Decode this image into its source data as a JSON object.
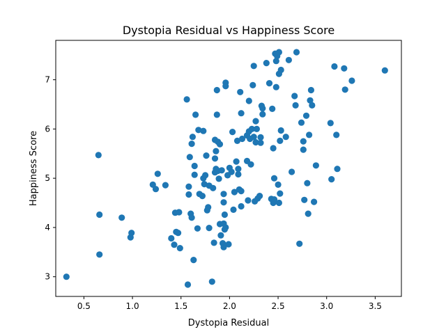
{
  "chart_data": {
    "type": "scatter",
    "title": "Dystopia Residual vs Happiness Score",
    "xlabel": "Dystopia Residual",
    "ylabel": "Happiness Score",
    "xlim": [
      0.21,
      3.77
    ],
    "ylim": [
      2.6,
      7.8
    ],
    "xticks": [
      0.5,
      1.0,
      1.5,
      2.0,
      2.5,
      3.0,
      3.5
    ],
    "xtick_labels": [
      "0.5",
      "1.0",
      "1.5",
      "2.0",
      "2.5",
      "3.0",
      "3.5"
    ],
    "yticks": [
      3,
      4,
      5,
      6,
      7
    ],
    "ytick_labels": [
      "3",
      "4",
      "5",
      "6",
      "7"
    ],
    "marker_color": "#1f77b4",
    "grid": false,
    "points": [
      [
        0.32,
        3.0
      ],
      [
        0.65,
        5.47
      ],
      [
        0.66,
        4.26
      ],
      [
        0.66,
        3.45
      ],
      [
        0.89,
        4.2
      ],
      [
        0.98,
        3.8
      ],
      [
        0.99,
        3.89
      ],
      [
        1.21,
        4.87
      ],
      [
        1.24,
        4.78
      ],
      [
        1.26,
        5.09
      ],
      [
        1.34,
        4.86
      ],
      [
        1.4,
        3.78
      ],
      [
        1.43,
        3.65
      ],
      [
        1.44,
        4.3
      ],
      [
        1.45,
        3.91
      ],
      [
        1.47,
        3.89
      ],
      [
        1.48,
        4.31
      ],
      [
        1.49,
        3.58
      ],
      [
        1.56,
        6.6
      ],
      [
        1.57,
        2.84
      ],
      [
        1.58,
        4.83
      ],
      [
        1.58,
        4.67
      ],
      [
        1.59,
        5.43
      ],
      [
        1.6,
        4.28
      ],
      [
        1.61,
        4.2
      ],
      [
        1.61,
        5.7
      ],
      [
        1.62,
        5.84
      ],
      [
        1.63,
        3.34
      ],
      [
        1.64,
        5.25
      ],
      [
        1.64,
        5.07
      ],
      [
        1.65,
        6.29
      ],
      [
        1.67,
        3.98
      ],
      [
        1.68,
        5.98
      ],
      [
        1.69,
        4.68
      ],
      [
        1.72,
        4.64
      ],
      [
        1.73,
        5.96
      ],
      [
        1.73,
        5.0
      ],
      [
        1.74,
        4.88
      ],
      [
        1.75,
        5.06
      ],
      [
        1.76,
        5.46
      ],
      [
        1.77,
        4.35
      ],
      [
        1.78,
        4.41
      ],
      [
        1.79,
        3.99
      ],
      [
        1.79,
        4.85
      ],
      [
        1.82,
        2.9
      ],
      [
        1.83,
        4.8
      ],
      [
        1.84,
        3.69
      ],
      [
        1.85,
        5.12
      ],
      [
        1.85,
        5.78
      ],
      [
        1.85,
        5.4
      ],
      [
        1.86,
        5.55
      ],
      [
        1.86,
        5.19
      ],
      [
        1.87,
        6.79
      ],
      [
        1.87,
        6.29
      ],
      [
        1.88,
        5.15
      ],
      [
        1.88,
        5.74
      ],
      [
        1.89,
        4.99
      ],
      [
        1.9,
        5.69
      ],
      [
        1.9,
        4.07
      ],
      [
        1.91,
        3.84
      ],
      [
        1.92,
        5.16
      ],
      [
        1.93,
        3.68
      ],
      [
        1.94,
        4.08
      ],
      [
        1.94,
        3.6
      ],
      [
        1.94,
        4.68
      ],
      [
        1.94,
        4.51
      ],
      [
        1.95,
        4.26
      ],
      [
        1.95,
        3.96
      ],
      [
        1.96,
        4.0
      ],
      [
        1.96,
        6.94
      ],
      [
        1.96,
        6.87
      ],
      [
        1.98,
        5.06
      ],
      [
        1.99,
        3.66
      ],
      [
        2.0,
        5.21
      ],
      [
        2.02,
        5.13
      ],
      [
        2.03,
        5.94
      ],
      [
        2.04,
        4.36
      ],
      [
        2.05,
        4.72
      ],
      [
        2.07,
        5.34
      ],
      [
        2.08,
        5.76
      ],
      [
        2.09,
        5.19
      ],
      [
        2.09,
        5.08
      ],
      [
        2.1,
        4.77
      ],
      [
        2.11,
        6.75
      ],
      [
        2.12,
        6.32
      ],
      [
        2.12,
        4.74
      ],
      [
        2.12,
        4.43
      ],
      [
        2.13,
        5.8
      ],
      [
        2.18,
        5.35
      ],
      [
        2.18,
        5.87
      ],
      [
        2.19,
        4.55
      ],
      [
        2.2,
        6.57
      ],
      [
        2.2,
        5.95
      ],
      [
        2.21,
        5.8
      ],
      [
        2.22,
        5.28
      ],
      [
        2.23,
        6.0
      ],
      [
        2.24,
        6.89
      ],
      [
        2.25,
        7.28
      ],
      [
        2.25,
        5.84
      ],
      [
        2.26,
        4.53
      ],
      [
        2.27,
        5.73
      ],
      [
        2.27,
        6.16
      ],
      [
        2.28,
        6.0
      ],
      [
        2.29,
        4.59
      ],
      [
        2.31,
        4.64
      ],
      [
        2.32,
        5.72
      ],
      [
        2.32,
        5.83
      ],
      [
        2.33,
        6.47
      ],
      [
        2.34,
        6.42
      ],
      [
        2.34,
        6.3
      ],
      [
        2.38,
        7.34
      ],
      [
        2.41,
        6.93
      ],
      [
        2.43,
        4.58
      ],
      [
        2.44,
        6.41
      ],
      [
        2.45,
        5.61
      ],
      [
        2.45,
        4.5
      ],
      [
        2.46,
        5.0
      ],
      [
        2.46,
        4.57
      ],
      [
        2.47,
        7.53
      ],
      [
        2.48,
        7.38
      ],
      [
        2.48,
        6.85
      ],
      [
        2.49,
        7.48
      ],
      [
        2.5,
        4.87
      ],
      [
        2.51,
        7.12
      ],
      [
        2.51,
        7.56
      ],
      [
        2.51,
        4.5
      ],
      [
        2.52,
        4.69
      ],
      [
        2.52,
        5.76
      ],
      [
        2.53,
        7.2
      ],
      [
        2.53,
        5.97
      ],
      [
        2.58,
        5.84
      ],
      [
        2.61,
        7.4
      ],
      [
        2.64,
        5.13
      ],
      [
        2.67,
        6.67
      ],
      [
        2.68,
        6.48
      ],
      [
        2.69,
        7.56
      ],
      [
        2.72,
        3.67
      ],
      [
        2.74,
        6.13
      ],
      [
        2.76,
        5.75
      ],
      [
        2.76,
        5.58
      ],
      [
        2.77,
        4.56
      ],
      [
        2.79,
        6.27
      ],
      [
        2.8,
        4.9
      ],
      [
        2.81,
        4.28
      ],
      [
        2.82,
        5.88
      ],
      [
        2.83,
        6.58
      ],
      [
        2.84,
        6.79
      ],
      [
        2.85,
        6.48
      ],
      [
        2.87,
        4.52
      ],
      [
        2.89,
        5.26
      ],
      [
        3.04,
        6.12
      ],
      [
        3.05,
        4.98
      ],
      [
        3.08,
        7.27
      ],
      [
        3.1,
        5.88
      ],
      [
        3.11,
        5.19
      ],
      [
        3.18,
        7.23
      ],
      [
        3.19,
        6.8
      ],
      [
        3.26,
        6.98
      ],
      [
        3.6,
        7.19
      ]
    ]
  }
}
